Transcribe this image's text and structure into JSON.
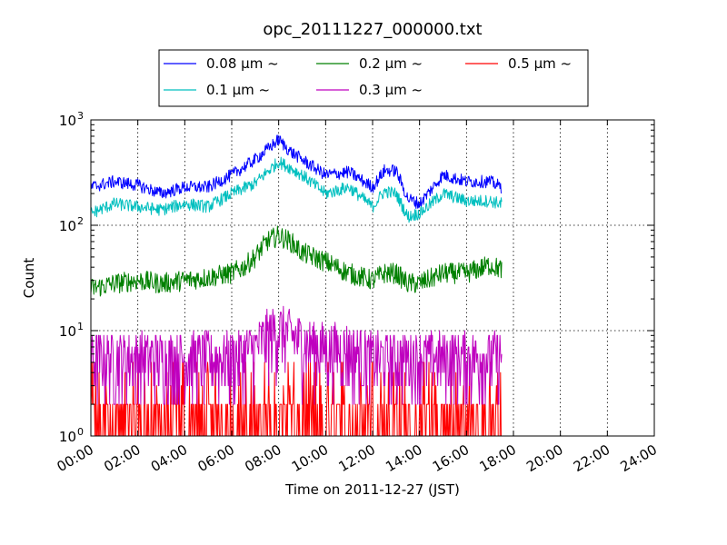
{
  "chart_data": {
    "type": "line",
    "title": "opc_20111227_000000.txt",
    "xlabel": "Time on 2011-12-27 (JST)",
    "ylabel": "Count",
    "y_scale": "log",
    "ylim": [
      1,
      1000
    ],
    "xlim": [
      "00:00",
      "24:00"
    ],
    "x_ticks": [
      "00:00",
      "02:00",
      "04:00",
      "06:00",
      "08:00",
      "10:00",
      "12:00",
      "14:00",
      "16:00",
      "18:00",
      "20:00",
      "22:00",
      "24:00"
    ],
    "y_ticks": [
      {
        "value": 1,
        "base": "10",
        "exp": "0"
      },
      {
        "value": 10,
        "base": "10",
        "exp": "1"
      },
      {
        "value": 100,
        "base": "10",
        "exp": "2"
      },
      {
        "value": 1000,
        "base": "10",
        "exp": "3"
      }
    ],
    "grid": true,
    "legend_placement": "top-center above plot",
    "series": [
      {
        "name": "0.08 μm ~",
        "color": "#0000ff",
        "x_hours": [
          0,
          1,
          2,
          3,
          4,
          5,
          6,
          7,
          7.5,
          8,
          8.5,
          9,
          10,
          11,
          12,
          12.5,
          13,
          13.5,
          14,
          15,
          16,
          17,
          17.5
        ],
        "values": [
          230,
          260,
          240,
          200,
          230,
          230,
          300,
          420,
          520,
          650,
          500,
          420,
          300,
          320,
          230,
          330,
          330,
          180,
          160,
          300,
          260,
          260,
          230
        ]
      },
      {
        "name": "0.1 μm ~",
        "color": "#00bfbf",
        "x_hours": [
          0,
          1,
          2,
          3,
          4,
          5,
          6,
          7,
          7.5,
          8,
          8.5,
          9,
          10,
          11,
          12,
          12.5,
          13,
          13.5,
          14,
          15,
          16,
          17,
          17.5
        ],
        "values": [
          130,
          160,
          150,
          140,
          160,
          150,
          200,
          250,
          320,
          400,
          350,
          300,
          200,
          230,
          150,
          210,
          200,
          120,
          130,
          200,
          170,
          170,
          160
        ]
      },
      {
        "name": "0.2 μm ~",
        "color": "#008000",
        "x_hours": [
          0,
          1,
          2,
          3,
          4,
          5,
          6,
          6.5,
          7,
          7.5,
          8,
          8.5,
          9,
          10,
          11,
          12,
          12.5,
          13,
          13.5,
          14,
          15,
          16,
          17,
          17.5
        ],
        "values": [
          25,
          28,
          30,
          28,
          30,
          32,
          35,
          40,
          50,
          70,
          80,
          70,
          55,
          45,
          35,
          30,
          35,
          35,
          28,
          28,
          35,
          35,
          42,
          38
        ]
      },
      {
        "name": "0.3 μm ~",
        "color": "#bf00bf",
        "x_hours": [
          0,
          1,
          2,
          3,
          4,
          5,
          6,
          7,
          7.5,
          8,
          8.5,
          9,
          10,
          11,
          12,
          13,
          14,
          15,
          16,
          17,
          17.5
        ],
        "values": [
          5,
          5,
          5,
          5,
          5,
          5,
          5,
          6,
          8,
          9,
          8,
          7,
          6,
          6,
          5,
          5,
          5,
          5,
          5,
          5,
          5
        ]
      },
      {
        "name": "0.5 μm ~",
        "color": "#ff0000",
        "x_hours": [
          0,
          1,
          2,
          3,
          4,
          5,
          6,
          7,
          8,
          9,
          10,
          11,
          12,
          13,
          14,
          15,
          16,
          17,
          17.5
        ],
        "values": [
          1.5,
          1.5,
          1.5,
          1.5,
          1.5,
          1.5,
          1.5,
          2,
          2,
          2,
          1.8,
          1.5,
          1.5,
          1.5,
          1.5,
          1.5,
          1.5,
          1.5,
          1.5
        ]
      }
    ]
  }
}
